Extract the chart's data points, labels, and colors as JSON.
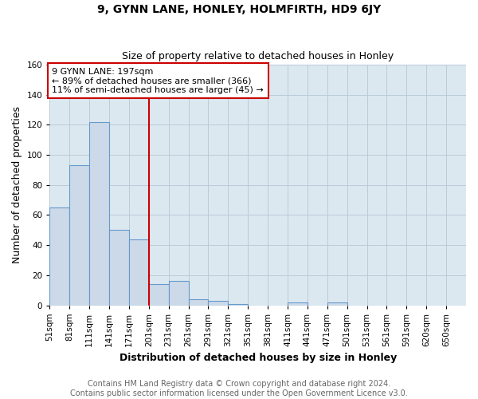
{
  "title": "9, GYNN LANE, HONLEY, HOLMFIRTH, HD9 6JY",
  "subtitle": "Size of property relative to detached houses in Honley",
  "xlabel": "Distribution of detached houses by size in Honley",
  "ylabel": "Number of detached properties",
  "bin_labels": [
    "51sqm",
    "81sqm",
    "111sqm",
    "141sqm",
    "171sqm",
    "201sqm",
    "231sqm",
    "261sqm",
    "291sqm",
    "321sqm",
    "351sqm",
    "381sqm",
    "411sqm",
    "441sqm",
    "471sqm",
    "501sqm",
    "531sqm",
    "561sqm",
    "591sqm",
    "620sqm",
    "650sqm"
  ],
  "bar_values": [
    65,
    93,
    122,
    50,
    44,
    14,
    16,
    4,
    3,
    1,
    0,
    0,
    2,
    0,
    2,
    0,
    0,
    0,
    0,
    0,
    0
  ],
  "bar_color": "#ccd9e8",
  "bar_edge_color": "#6699cc",
  "vline_x": 5,
  "vline_color": "#cc0000",
  "annotation_text": "9 GYNN LANE: 197sqm\n← 89% of detached houses are smaller (366)\n11% of semi-detached houses are larger (45) →",
  "annotation_box_color": "#ffffff",
  "annotation_box_edge_color": "#cc0000",
  "ylim": [
    0,
    160
  ],
  "yticks": [
    0,
    20,
    40,
    60,
    80,
    100,
    120,
    140,
    160
  ],
  "footer_text": "Contains HM Land Registry data © Crown copyright and database right 2024.\nContains public sector information licensed under the Open Government Licence v3.0.",
  "background_color": "#ffffff",
  "plot_bg_color": "#dce8f0",
  "title_fontsize": 10,
  "subtitle_fontsize": 9,
  "axis_label_fontsize": 9,
  "tick_fontsize": 7.5,
  "annotation_fontsize": 8,
  "footer_fontsize": 7
}
